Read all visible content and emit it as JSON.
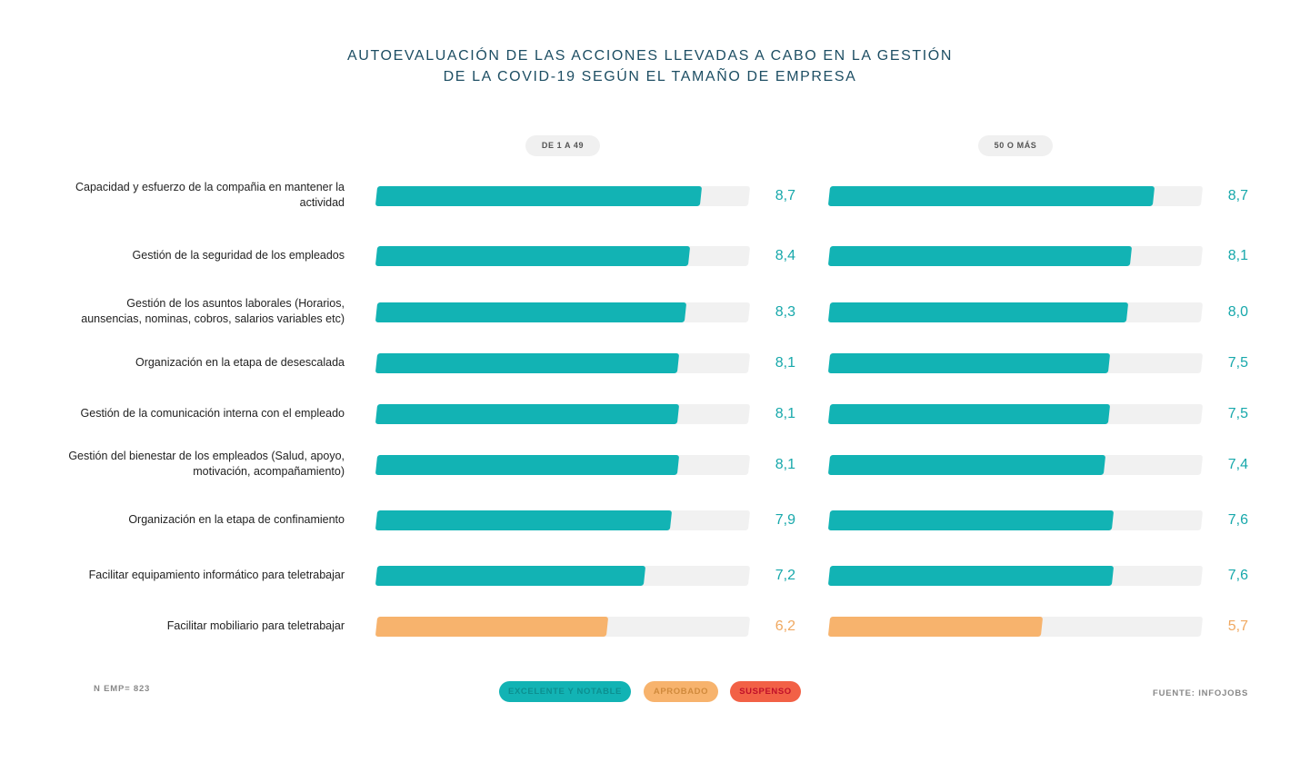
{
  "chart_data": {
    "type": "bar",
    "orientation": "horizontal",
    "title_lines": [
      "AUTOEVALUACIÓN DE LAS ACCIONES LLEVADAS A CABO EN LA GESTIÓN",
      "DE LA COVID-19 SEGÚN EL TAMAÑO DE EMPRESA"
    ],
    "xlim": [
      0,
      10
    ],
    "categories": [
      [
        "Capacidad y esfuerzo de la compañia en mantener la",
        "actividad"
      ],
      [
        "Gestión de la seguridad de los empleados"
      ],
      [
        "Gestión de los asuntos laborales (Horarios,",
        "aunsencias, nominas, cobros, salarios variables etc)"
      ],
      [
        "Organización en la etapa de desescalada"
      ],
      [
        "Gestión de la comunicación interna con el empleado"
      ],
      [
        "Gestión del bienestar de los empleados (Salud, apoyo,",
        "motivación, acompañamiento)"
      ],
      [
        "Organización en la etapa de confinamiento"
      ],
      [
        "Facilitar equipamiento informático para teletrabajar"
      ],
      [
        "Facilitar mobiliario para teletrabajar"
      ]
    ],
    "series": [
      {
        "name": "DE 1 A 49",
        "values": [
          8.7,
          8.4,
          8.3,
          8.1,
          8.1,
          8.1,
          7.9,
          7.2,
          6.2
        ],
        "labels": [
          "8,7",
          "8,4",
          "8,3",
          "8,1",
          "8,1",
          "8,1",
          "7,9",
          "7,2",
          "6,2"
        ],
        "classes": [
          "excelente",
          "excelente",
          "excelente",
          "excelente",
          "excelente",
          "excelente",
          "excelente",
          "excelente",
          "aprobado"
        ]
      },
      {
        "name": "50 O MÁS",
        "values": [
          8.7,
          8.1,
          8.0,
          7.5,
          7.5,
          7.4,
          7.6,
          7.6,
          5.7
        ],
        "labels": [
          "8,7",
          "8,1",
          "8,0",
          "7,5",
          "7,5",
          "7,4",
          "7,6",
          "7,6",
          "5,7"
        ],
        "classes": [
          "excelente",
          "excelente",
          "excelente",
          "excelente",
          "excelente",
          "excelente",
          "excelente",
          "excelente",
          "aprobado"
        ]
      }
    ],
    "legend": [
      {
        "key": "excelente",
        "label": "EXCELENTE Y NOTABLE",
        "color": "#12b3b4",
        "text_color": "#0c8f90"
      },
      {
        "key": "aprobado",
        "label": "APROBADO",
        "color": "#f7b36d",
        "text_color": "#d08a3c"
      },
      {
        "key": "suspenso",
        "label": "SUSPENSO",
        "color": "#f26146",
        "text_color": "#c0102a"
      }
    ],
    "legend_position": "bottom-center",
    "grid": false
  },
  "footer": {
    "sample_note": "N EMP= 823",
    "source": "FUENTE: INFOJOBS"
  },
  "colors": {
    "title": "#1d4e63",
    "track": "#f1f1f1"
  }
}
